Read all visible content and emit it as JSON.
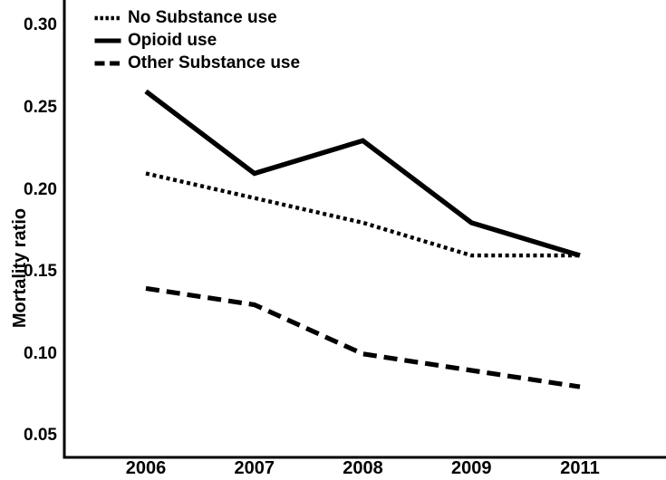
{
  "chart_data": {
    "type": "line",
    "title": "",
    "xlabel": "",
    "ylabel": "Mortality ratio",
    "categories": [
      "2006",
      "2007",
      "2008",
      "2009",
      "2011"
    ],
    "series": [
      {
        "name": "No Substance use",
        "line_style": "dotted",
        "color": "#000000",
        "values": [
          0.21,
          0.195,
          0.18,
          0.16,
          0.16
        ]
      },
      {
        "name": "Opioid use",
        "line_style": "solid",
        "color": "#000000",
        "values": [
          0.26,
          0.21,
          0.23,
          0.18,
          0.16
        ]
      },
      {
        "name": "Other Substance use",
        "line_style": "dashed",
        "color": "#000000",
        "values": [
          0.14,
          0.13,
          0.1,
          0.09,
          0.08
        ]
      }
    ],
    "yticks": [
      0.05,
      0.1,
      0.15,
      0.2,
      0.25,
      0.3
    ],
    "ytick_labels": [
      "0.05",
      "0.10",
      "0.15",
      "0.20",
      "0.25",
      "0.30"
    ],
    "ylim": [
      0.037,
      0.3157
    ],
    "grid": false,
    "legend_position": "top-left",
    "axis_color": "#000000",
    "background": "#ffffff"
  }
}
